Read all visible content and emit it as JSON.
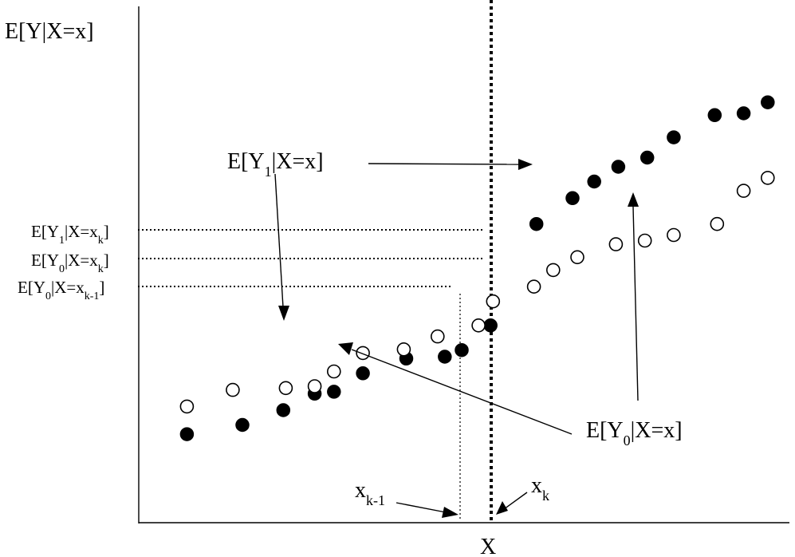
{
  "labels": {
    "y_axis": "E[Y|X=x]",
    "x_axis": "X",
    "curve_treated": {
      "base": "E[Y",
      "sub": "1",
      "tail": "|X=x]"
    },
    "curve_control": {
      "base": "E[Y",
      "sub": "0",
      "tail": "|X=x]"
    },
    "y1_at_xk": {
      "base": "E[Y",
      "sub": "1",
      "mid": "|X=x",
      "sub2": "k",
      "tail": "]"
    },
    "y0_at_xk": {
      "base": "E[Y",
      "sub": "0",
      "mid": "|X=x",
      "sub2": "k",
      "tail": "]"
    },
    "y0_at_xk1": {
      "base": "E[Y",
      "sub": "0",
      "mid": "|X=x",
      "sub2": "k-1",
      "tail": "]"
    },
    "xk": {
      "base": "x",
      "sub": "k"
    },
    "xk1": {
      "base": "x",
      "sub": "k-1"
    }
  },
  "chart_data": {
    "type": "scatter",
    "series": [
      {
        "name": "E[Y1|X=x]",
        "marker": "filled",
        "points": [
          [
            1.0,
            2.4
          ],
          [
            2.15,
            2.65
          ],
          [
            3.0,
            3.05
          ],
          [
            3.65,
            3.5
          ],
          [
            4.05,
            3.55
          ],
          [
            4.65,
            4.05
          ],
          [
            5.55,
            4.45
          ],
          [
            6.35,
            4.5
          ],
          [
            6.7,
            4.68
          ],
          [
            7.3,
            5.35
          ],
          [
            8.25,
            8.1
          ],
          [
            9.0,
            8.8
          ],
          [
            9.45,
            9.25
          ],
          [
            9.95,
            9.65
          ],
          [
            10.55,
            9.9
          ],
          [
            11.1,
            10.45
          ],
          [
            11.95,
            11.05
          ],
          [
            12.55,
            11.1
          ],
          [
            13.05,
            11.4
          ]
        ]
      },
      {
        "name": "E[Y0|X=x]",
        "marker": "open",
        "points": [
          [
            1.0,
            3.15
          ],
          [
            1.95,
            3.6
          ],
          [
            3.05,
            3.65
          ],
          [
            3.65,
            3.7
          ],
          [
            4.05,
            4.1
          ],
          [
            4.65,
            4.6
          ],
          [
            5.5,
            4.7
          ],
          [
            6.2,
            5.05
          ],
          [
            7.05,
            5.35
          ],
          [
            7.35,
            6.0
          ],
          [
            8.2,
            6.4
          ],
          [
            8.6,
            6.85
          ],
          [
            9.1,
            7.2
          ],
          [
            9.9,
            7.55
          ],
          [
            10.5,
            7.65
          ],
          [
            11.1,
            7.8
          ],
          [
            12.0,
            8.1
          ],
          [
            12.55,
            9.0
          ],
          [
            13.05,
            9.35
          ]
        ]
      }
    ],
    "xlim": [
      0,
      13.5
    ],
    "ylim": [
      0,
      14
    ],
    "threshold_x": 7.35,
    "x_k_minus_1": 6.7,
    "ylabel": "E[Y|X=x]",
    "xlabel": "X",
    "grid": false,
    "legend": "none"
  }
}
